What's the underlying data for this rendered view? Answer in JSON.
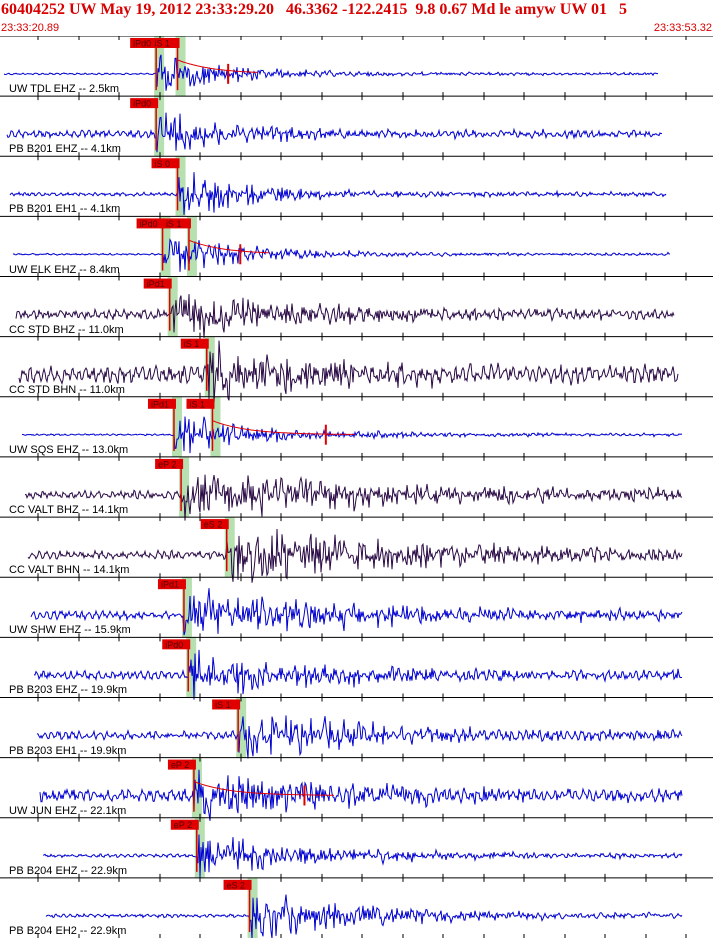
{
  "header": {
    "title": "60404252 UW May 19, 2012 23:33:29.20   46.3362 -122.2415  9.8 0.67 Md le amyw UW 01   5",
    "start_time": "23:33:20.89",
    "end_time": "23:33:53.32"
  },
  "colors": {
    "title": "#d80000",
    "uw_trace": "#0000d0",
    "cc_trace": "#2a0a45",
    "pick_box": "#e00000",
    "pick_window": "#b6e0b0",
    "grid": "#000000"
  },
  "traces": [
    {
      "label": "UW TDL EHZ -- 2.5km",
      "network": "UW",
      "noise": 0.03,
      "onset": 0.22,
      "amp": 0.42,
      "decay": 10,
      "picks": [
        {
          "label": "iPd0",
          "t": 0.219
        },
        {
          "label": "iS 1",
          "t": 0.249
        }
      ],
      "coda_marker": 0.32,
      "mag_curve": true
    },
    {
      "label": "PB B201 EHZ -- 4.1km",
      "network": "PB",
      "noise": 0.12,
      "onset": 0.22,
      "amp": 0.45,
      "decay": 9,
      "picks": [
        {
          "label": "iPd0",
          "t": 0.219
        }
      ],
      "coda_marker": null,
      "mag_curve": false
    },
    {
      "label": "PB B201 EH1 -- 4.1km",
      "network": "PB",
      "noise": 0.06,
      "onset": 0.25,
      "amp": 0.5,
      "decay": 10,
      "picks": [
        {
          "label": "iS 0",
          "t": 0.249
        }
      ],
      "coda_marker": null,
      "mag_curve": false
    },
    {
      "label": "UW ELK EHZ -- 8.4km",
      "network": "UW",
      "noise": 0.03,
      "onset": 0.23,
      "amp": 0.4,
      "decay": 9,
      "picks": [
        {
          "label": "iPd0",
          "t": 0.228
        },
        {
          "label": "iS 1",
          "t": 0.265
        }
      ],
      "coda_marker": 0.337,
      "mag_curve": true
    },
    {
      "label": "CC STD BHZ -- 11.0km",
      "network": "CC",
      "noise": 0.16,
      "onset": 0.24,
      "amp": 0.45,
      "decay": 5,
      "picks": [
        {
          "label": "iPd1",
          "t": 0.238
        }
      ],
      "coda_marker": null,
      "mag_curve": false
    },
    {
      "label": "CC STD BHN -- 11.0km",
      "network": "CC",
      "noise": 0.28,
      "onset": 0.29,
      "amp": 0.5,
      "decay": 5,
      "picks": [
        {
          "label": "iS 1",
          "t": 0.29
        }
      ],
      "coda_marker": null,
      "mag_curve": false
    },
    {
      "label": "UW SQS EHZ -- 13.0km",
      "network": "UW",
      "noise": 0.03,
      "onset": 0.245,
      "amp": 0.4,
      "decay": 8,
      "picks": [
        {
          "label": "iPd1",
          "t": 0.244
        },
        {
          "label": "iS 1",
          "t": 0.298
        }
      ],
      "coda_marker": 0.457,
      "mag_curve": true
    },
    {
      "label": "CC VALT BHZ -- 14.1km",
      "network": "CC",
      "noise": 0.14,
      "onset": 0.254,
      "amp": 0.48,
      "decay": 3,
      "picks": [
        {
          "label": "eP 2",
          "t": 0.254
        }
      ],
      "coda_marker": null,
      "mag_curve": false
    },
    {
      "label": "CC VALT BHN -- 14.1km",
      "network": "CC",
      "noise": 0.14,
      "onset": 0.318,
      "amp": 0.52,
      "decay": 3,
      "picks": [
        {
          "label": "eS 2",
          "t": 0.318
        }
      ],
      "coda_marker": null,
      "mag_curve": false
    },
    {
      "label": "UW SHW EHZ -- 15.9km",
      "network": "UW",
      "noise": 0.14,
      "onset": 0.258,
      "amp": 0.48,
      "decay": 4,
      "picks": [
        {
          "label": "iPd1",
          "t": 0.258
        }
      ],
      "coda_marker": null,
      "mag_curve": false
    },
    {
      "label": "PB B203 EHZ -- 19.9km",
      "network": "PB",
      "noise": 0.14,
      "onset": 0.265,
      "amp": 0.45,
      "decay": 5,
      "picks": [
        {
          "label": "iPd0",
          "t": 0.264
        }
      ],
      "coda_marker": null,
      "mag_curve": false
    },
    {
      "label": "PB B203 EH1 -- 19.9km",
      "network": "PB",
      "noise": 0.14,
      "onset": 0.334,
      "amp": 0.48,
      "decay": 5,
      "picks": [
        {
          "label": "iS 1",
          "t": 0.334
        }
      ],
      "coda_marker": null,
      "mag_curve": false
    },
    {
      "label": "UW JUN EHZ -- 22.1km",
      "network": "UW",
      "noise": 0.22,
      "onset": 0.272,
      "amp": 0.5,
      "decay": 5,
      "picks": [
        {
          "label": "eP 2",
          "t": 0.272
        }
      ],
      "coda_marker": 0.427,
      "mag_curve": true
    },
    {
      "label": "PB B204 EHZ -- 22.9km",
      "network": "PB",
      "noise": 0.06,
      "onset": 0.276,
      "amp": 0.42,
      "decay": 6,
      "picks": [
        {
          "label": "eP 2",
          "t": 0.276
        }
      ],
      "coda_marker": null,
      "mag_curve": false
    },
    {
      "label": "PB B204 EH2 -- 22.9km",
      "network": "PB",
      "noise": 0.06,
      "onset": 0.35,
      "amp": 0.48,
      "decay": 6,
      "picks": [
        {
          "label": "eS 2",
          "t": 0.35
        }
      ],
      "coda_marker": null,
      "mag_curve": false
    }
  ]
}
